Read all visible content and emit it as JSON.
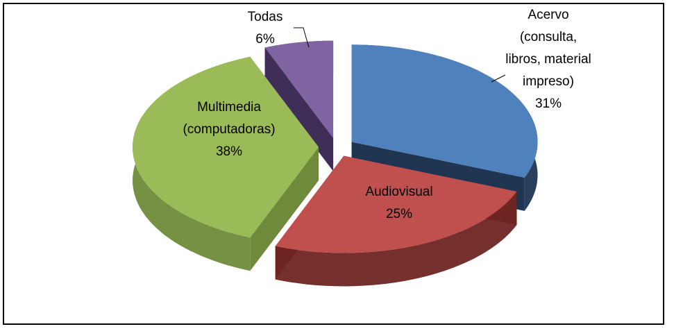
{
  "chart_data": {
    "type": "pie3d",
    "categories": [
      "Acervo\n(consulta,\nlibros, material\nimpreso)",
      "Audiovisual",
      "Multimedia\n(computadoras)",
      "Todas"
    ],
    "values": [
      31,
      25,
      38,
      6
    ],
    "value_labels": [
      "31%",
      "25%",
      "38%",
      "6%"
    ],
    "colors": [
      "#4f81bd",
      "#c0504d",
      "#9bbb59",
      "#8064a2"
    ],
    "side_colors": [
      "#1f3552",
      "#6e2523",
      "#6f8a3a",
      "#3f2f58"
    ]
  }
}
